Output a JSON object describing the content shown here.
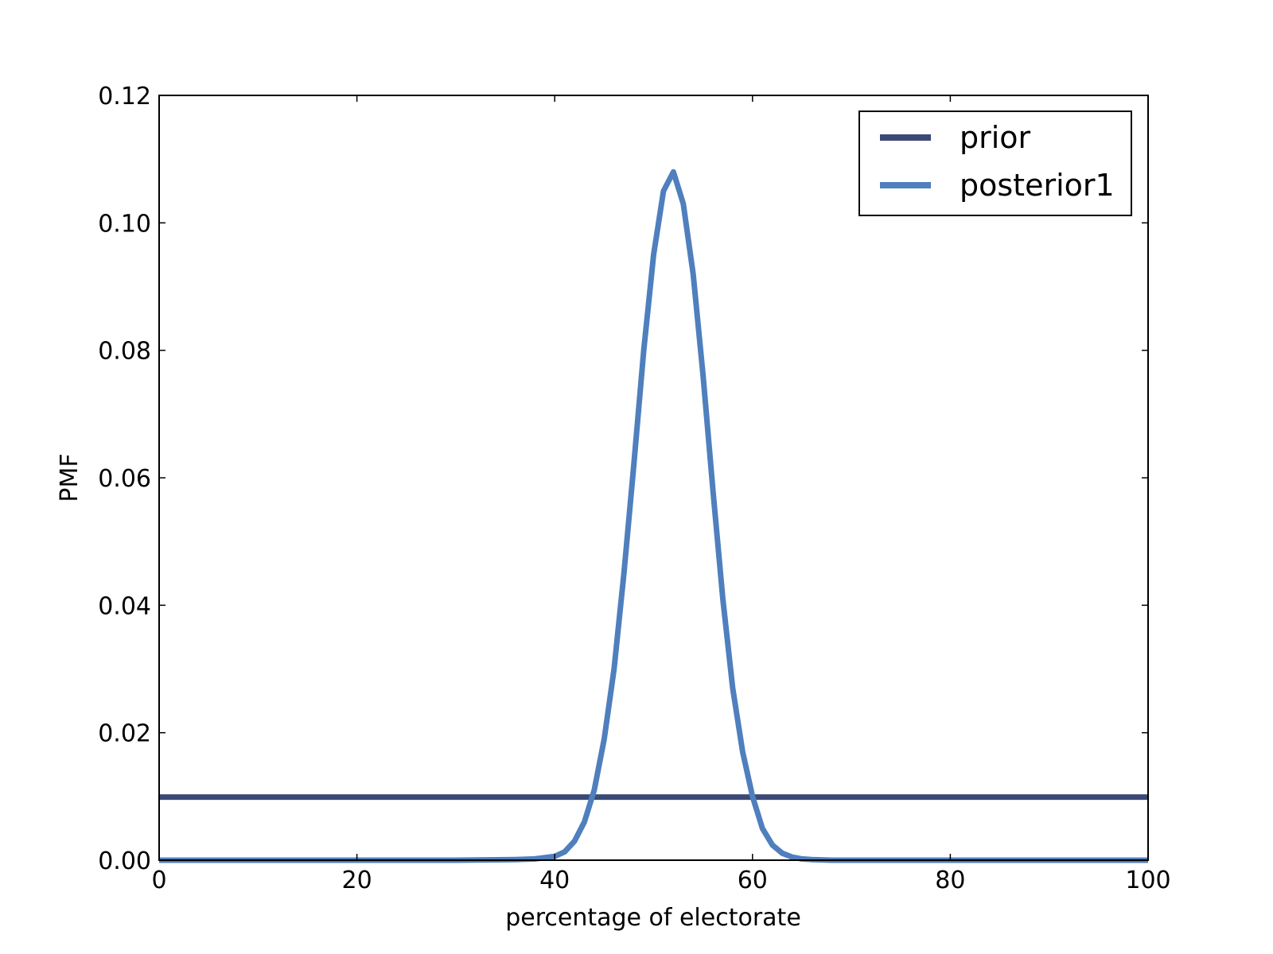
{
  "chart_data": {
    "type": "line",
    "title": "",
    "xlabel": "percentage of electorate",
    "ylabel": "PMF",
    "xlim": [
      0,
      100
    ],
    "ylim": [
      0,
      0.12
    ],
    "x_ticks": [
      "0",
      "20",
      "40",
      "60",
      "80",
      "100"
    ],
    "y_ticks": [
      "0.00",
      "0.02",
      "0.04",
      "0.06",
      "0.08",
      "0.10",
      "0.12"
    ],
    "grid": false,
    "legend_position": "top-right",
    "colors": {
      "prior": "#3b4a75",
      "posterior1": "#4f7fbd"
    },
    "series": [
      {
        "name": "prior",
        "x": [
          0,
          100
        ],
        "y": [
          0.0099,
          0.0099
        ]
      },
      {
        "name": "posterior1",
        "x": [
          0,
          30,
          36,
          38,
          40,
          41,
          42,
          43,
          44,
          45,
          46,
          47,
          48,
          49,
          50,
          51,
          52,
          53,
          54,
          55,
          56,
          57,
          58,
          59,
          60,
          61,
          62,
          63,
          64,
          65,
          66,
          68,
          70,
          100
        ],
        "y": [
          0,
          0,
          0.0001,
          0.0002,
          0.0006,
          0.0013,
          0.003,
          0.006,
          0.011,
          0.019,
          0.03,
          0.045,
          0.062,
          0.08,
          0.095,
          0.105,
          0.108,
          0.103,
          0.092,
          0.076,
          0.058,
          0.041,
          0.027,
          0.017,
          0.01,
          0.005,
          0.0024,
          0.0011,
          0.0005,
          0.0002,
          0.0001,
          0,
          0,
          0
        ]
      }
    ]
  }
}
